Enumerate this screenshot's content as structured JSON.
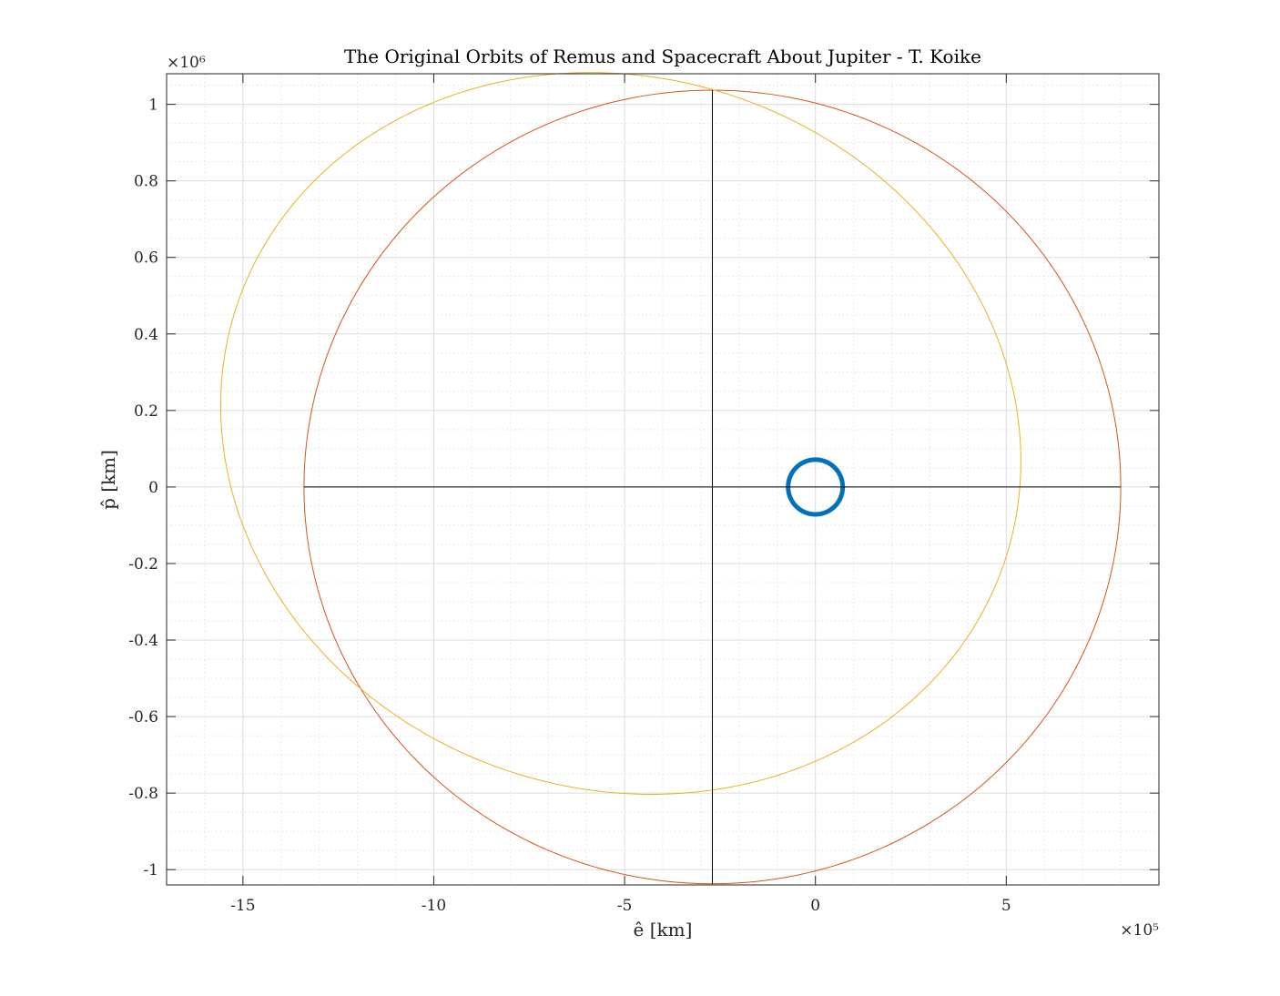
{
  "chart_data": {
    "type": "line",
    "title": "The Original Orbits of Remus and Spacecraft About Jupiter - T. Koike",
    "xlabel": "ê [km]",
    "ylabel": "p̂ [km]",
    "x_exponent_label": "×10⁵",
    "y_exponent_label": "×10⁶",
    "x_scale": 100000,
    "y_scale": 1000000,
    "xlim": [
      -1700000,
      900000
    ],
    "ylim": [
      -1040000,
      1080000
    ],
    "xticks": [
      -1500000,
      -1000000,
      -500000,
      0,
      500000
    ],
    "xtick_labels": [
      "-15",
      "-10",
      "-5",
      "0",
      "5"
    ],
    "yticks": [
      -1000000,
      -800000,
      -600000,
      -400000,
      -200000,
      0,
      200000,
      400000,
      600000,
      800000,
      1000000
    ],
    "ytick_labels": [
      "-1",
      "-0.8",
      "-0.6",
      "-0.4",
      "-0.2",
      "0",
      "0.2",
      "0.4",
      "0.6",
      "0.8",
      "1"
    ],
    "grid": true,
    "minor_grid": true,
    "legend": "none",
    "series": [
      {
        "kind": "ellipse",
        "color": "#D95319",
        "center": [
          -270000,
          0
        ],
        "semi_axis_x": 1070000,
        "semi_axis_y": 1037000,
        "rotation_deg": 0,
        "line_width": 1
      },
      {
        "kind": "ellipse",
        "color": "#EDB120",
        "center": [
          -510000,
          140000
        ],
        "semi_axis_x": 1060000,
        "semi_axis_y": 930000,
        "rotation_deg": -18,
        "line_width": 1
      },
      {
        "kind": "circle",
        "color": "#0072BD",
        "center": [
          0,
          0
        ],
        "radius": 71492,
        "line_width": 5
      },
      {
        "kind": "segment",
        "color": "#000000",
        "x": [
          -1340000,
          800000
        ],
        "y": [
          0,
          0
        ],
        "line_width": 1
      },
      {
        "kind": "segment",
        "color": "#000000",
        "x": [
          -270000,
          -270000
        ],
        "y": [
          -1037000,
          1037000
        ],
        "line_width": 1
      }
    ]
  },
  "colors": {
    "axes": "#262626",
    "grid_major": "#dcdcdc",
    "grid_minor": "#e3e3e3",
    "background": "#ffffff"
  }
}
